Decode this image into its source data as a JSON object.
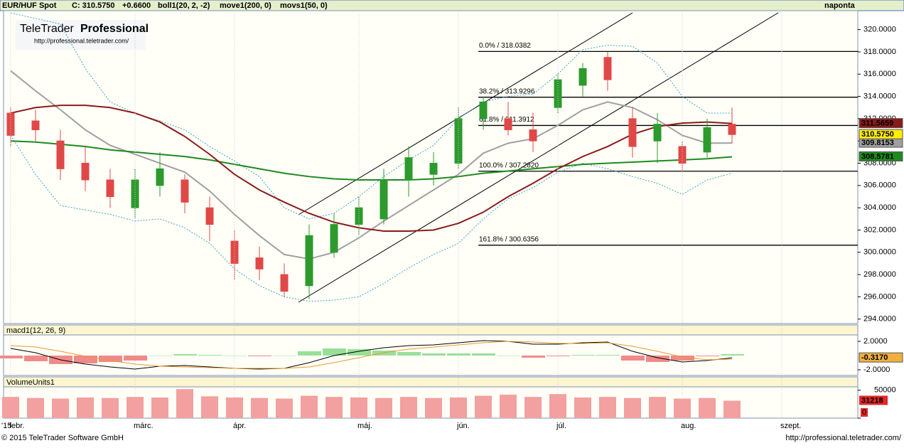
{
  "header": {
    "symbol": "EUR/HUF Spot",
    "close": "C: 310.5750",
    "change": "+0.6600",
    "indicators": [
      "boll1(20, 2, -2)",
      "move1(200, 0)",
      "movs1(50, 0)"
    ],
    "period": "naponta"
  },
  "logo": {
    "brand": "TeleTrader",
    "product": "Professional",
    "url": "http://professional.teletrader.com/"
  },
  "footer": {
    "year": "'15",
    "copyright": "© 2015 TeleTrader Software GmbH",
    "url": "http://professional.teletrader.com/"
  },
  "chart_data": [
    {
      "type": "candlestick",
      "categories": [
        "febr.",
        null,
        null,
        null,
        null,
        "márc.",
        null,
        null,
        null,
        "ápr.",
        null,
        null,
        null,
        null,
        "máj.",
        null,
        null,
        null,
        "jún.",
        null,
        null,
        null,
        "júl.",
        null,
        null,
        null,
        null,
        "aug.",
        null,
        null,
        null,
        "szept."
      ],
      "open": [
        312.5,
        311.8,
        310.0,
        308.0,
        306.5,
        304.0,
        306.0,
        306.5,
        304.0,
        301.0,
        299.5,
        298.0,
        297.0,
        300.0,
        302.5,
        303.0,
        306.5,
        307.0,
        308.0,
        312.0,
        312.0,
        311.0,
        313.0,
        315.0,
        317.5,
        312.0,
        310.0,
        309.5,
        309.0,
        311.5,
        null,
        null
      ],
      "high": [
        313.0,
        312.8,
        311.0,
        309.5,
        307.5,
        307.5,
        309.0,
        307.0,
        305.0,
        302.0,
        300.5,
        299.0,
        302.5,
        303.5,
        305.0,
        307.5,
        309.5,
        309.0,
        313.0,
        314.0,
        313.5,
        312.5,
        316.0,
        317.0,
        318.0,
        313.0,
        312.5,
        310.0,
        312.0,
        313.0,
        null,
        null
      ],
      "low": [
        309.5,
        310.0,
        306.5,
        305.5,
        304.0,
        303.0,
        305.0,
        303.5,
        301.0,
        297.5,
        297.5,
        296.0,
        295.8,
        299.5,
        301.5,
        302.5,
        305.0,
        306.0,
        307.5,
        311.0,
        310.5,
        309.0,
        312.5,
        314.0,
        314.5,
        308.5,
        308.0,
        307.2,
        308.5,
        309.8,
        null,
        null
      ],
      "close": [
        310.5,
        311.0,
        307.5,
        306.5,
        305.0,
        306.5,
        307.5,
        304.5,
        302.5,
        299.0,
        298.5,
        296.5,
        301.5,
        302.5,
        304.0,
        306.5,
        308.5,
        308.0,
        312.0,
        313.5,
        311.0,
        310.0,
        315.5,
        316.5,
        315.5,
        309.5,
        311.5,
        308.0,
        311.2,
        310.575,
        null,
        null
      ],
      "colors": {
        "up": "#2c9a2c",
        "down": "#e04848"
      },
      "close_label": "310.5750",
      "close_badge_color": "#ffee00",
      "lines": [
        {
          "color": "#3fa3c4",
          "dashed": true,
          "values": [
            321.5,
            321.0,
            320.5,
            316.5,
            313.5,
            312.5,
            311.8,
            311.0,
            309.5,
            308.2,
            306.8,
            304.0,
            303.0,
            303.5,
            305.0,
            306.8,
            308.3,
            309.6,
            312.0,
            313.5,
            314.0,
            314.2,
            316.0,
            318.2,
            318.6,
            318.5,
            317.0,
            314.0,
            312.5,
            312.5,
            null,
            null
          ]
        },
        {
          "color": "#3fa3c4",
          "dashed": true,
          "values": [
            310.5,
            307.0,
            304.2,
            303.8,
            303.4,
            302.8,
            303.0,
            302.2,
            300.8,
            298.5,
            297.0,
            296.0,
            295.6,
            295.7,
            296.0,
            297.2,
            298.6,
            299.8,
            300.8,
            303.0,
            304.8,
            305.8,
            307.2,
            308.0,
            307.5,
            306.8,
            306.2,
            305.2,
            306.5,
            307.1,
            null,
            null
          ]
        },
        {
          "color": "#a0a0a0",
          "dashed": false,
          "last_label": "309.8153",
          "values": [
            316.3,
            314.5,
            312.8,
            311.0,
            309.6,
            308.8,
            308.0,
            307.2,
            305.5,
            303.4,
            301.5,
            299.8,
            299.4,
            300.0,
            301.3,
            302.8,
            304.2,
            305.6,
            307.0,
            308.9,
            309.8,
            310.2,
            311.4,
            312.8,
            313.5,
            313.0,
            311.9,
            310.5,
            309.8,
            309.8153,
            null,
            null
          ]
        },
        {
          "color": "#1e8a1e",
          "dashed": false,
          "last_label": "308.5781",
          "values": [
            310.0,
            309.9,
            309.7,
            309.5,
            309.2,
            309.0,
            308.8,
            308.6,
            308.3,
            307.9,
            307.5,
            307.1,
            306.8,
            306.6,
            306.5,
            306.5,
            306.5,
            306.6,
            306.8,
            307.1,
            307.3,
            307.5,
            307.7,
            307.9,
            308.0,
            308.1,
            308.2,
            308.3,
            308.4,
            308.5781,
            null,
            null
          ]
        },
        {
          "color": "#8b1a1a",
          "dashed": false,
          "last_label": "311.5659",
          "values": [
            312.5,
            313.0,
            313.2,
            313.2,
            313.0,
            312.5,
            311.7,
            310.4,
            308.8,
            307.0,
            305.6,
            304.5,
            303.5,
            302.7,
            302.2,
            301.9,
            301.9,
            302.0,
            302.6,
            303.6,
            305.0,
            306.2,
            307.5,
            308.6,
            309.5,
            310.6,
            311.3,
            311.6,
            311.7,
            311.5659,
            null,
            null
          ]
        }
      ],
      "fibonacci": [
        {
          "label": "0.0% / 318.0382",
          "value": 318.0382
        },
        {
          "label": "38.2% / 313.9296",
          "value": 313.9296
        },
        {
          "label": "61.8% / 311.3912",
          "value": 311.3912
        },
        {
          "label": "100.0% / 307.2820",
          "value": 307.282
        },
        {
          "label": "161.8% / 300.6356",
          "value": 300.6356
        }
      ],
      "ylim": [
        293.6,
        321.7
      ],
      "yticks": [
        {
          "value": 294,
          "label": "294.0000"
        },
        {
          "value": 296,
          "label": "296.0000"
        },
        {
          "value": 298,
          "label": "298.0000"
        },
        {
          "value": 300,
          "label": "300.0000"
        },
        {
          "value": 302,
          "label": "302.0000"
        },
        {
          "value": 304,
          "label": "304.0000"
        },
        {
          "value": 306,
          "label": "306.0000"
        },
        {
          "value": 308,
          "label": "308.0000"
        },
        {
          "value": 310,
          "label": "310.0000"
        },
        {
          "value": 312,
          "label": "312.0000"
        },
        {
          "value": 314,
          "label": "314.0000"
        },
        {
          "value": 316,
          "label": "316.0000"
        },
        {
          "value": 318,
          "label": "318.0000"
        },
        {
          "value": 320,
          "label": "320.0000"
        }
      ]
    },
    {
      "type": "macd",
      "title": "macd1(12, 26, 9)",
      "series": [
        {
          "color": "#000000",
          "values": [
            1.0,
            0.4,
            -0.6,
            -1.2,
            -1.6,
            -1.9,
            -1.5,
            -1.4,
            -1.6,
            -1.8,
            -1.9,
            -1.8,
            -1.0,
            0.0,
            0.6,
            1.1,
            1.4,
            1.5,
            1.8,
            2.1,
            2.0,
            1.6,
            1.6,
            1.8,
            1.9,
            0.6,
            -0.3,
            -0.9,
            -0.7,
            -0.317
          ]
        },
        {
          "color": "#e89a2a",
          "values": [
            1.4,
            1.2,
            0.6,
            -0.1,
            -0.7,
            -1.2,
            -1.5,
            -1.6,
            -1.7,
            -1.8,
            -1.8,
            -1.8,
            -1.6,
            -1.0,
            -0.3,
            0.4,
            0.9,
            1.2,
            1.5,
            1.8,
            2.0,
            1.9,
            1.7,
            1.7,
            1.8,
            1.3,
            0.6,
            -0.2,
            -0.6,
            -0.5
          ]
        }
      ],
      "histogram": {
        "values": [
          -0.4,
          -0.8,
          -1.2,
          -1.1,
          -0.9,
          -0.7,
          0.0,
          0.2,
          0.1,
          0.0,
          -0.1,
          0.0,
          0.6,
          1.0,
          0.9,
          0.7,
          0.5,
          0.3,
          0.3,
          0.3,
          0.0,
          -0.3,
          -0.1,
          0.1,
          0.1,
          -0.7,
          -0.9,
          -0.7,
          -0.1,
          0.2
        ],
        "colors": {
          "up": "#98e098",
          "down": "#f08a8a"
        }
      },
      "last_label": "-0.3170",
      "badge_color": "#f0b040",
      "ylim": [
        -2.8,
        2.9
      ],
      "yticks": [
        {
          "value": 2,
          "label": "2.0000"
        },
        {
          "value": -2,
          "label": "-2.0000"
        }
      ]
    },
    {
      "type": "bar",
      "title": "VolumeUnits1",
      "values": [
        38000,
        36000,
        35000,
        37000,
        36000,
        38000,
        37000,
        52000,
        39000,
        37000,
        36000,
        35000,
        40000,
        38000,
        37000,
        36000,
        38000,
        36000,
        37000,
        40000,
        42000,
        38000,
        43000,
        37000,
        38000,
        36000,
        38000,
        35000,
        36000,
        31218
      ],
      "color": "#f2a0a0",
      "badge_color": "#e02828",
      "ylim": [
        0,
        56000
      ],
      "yticks": [
        0,
        50000
      ]
    }
  ]
}
